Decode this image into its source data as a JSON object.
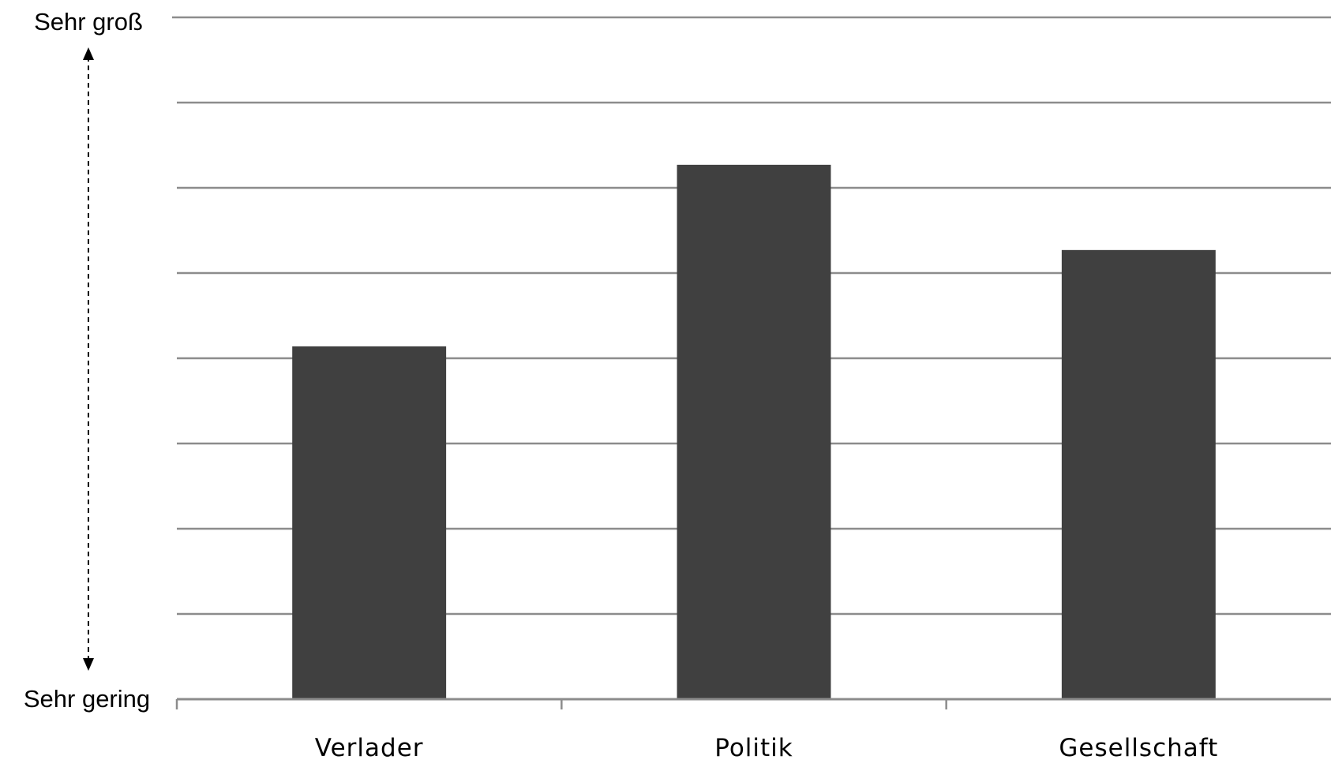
{
  "chart_data": {
    "type": "bar",
    "title": "",
    "xlabel": "",
    "ylabel": "",
    "categories": [
      "Verlader",
      "Politik",
      "Gesellschaft"
    ],
    "values": [
      4.14,
      6.27,
      5.27
    ],
    "ylim": [
      0,
      8
    ],
    "y_tick_labels": {
      "top": "Sehr groß",
      "bottom": "Sehr gering"
    },
    "grid": true,
    "legend": "none",
    "colors": {
      "bar": "#404040",
      "grid": "#8c8c8c",
      "axis": "#8c8c8c",
      "arrow": "#000000"
    }
  }
}
